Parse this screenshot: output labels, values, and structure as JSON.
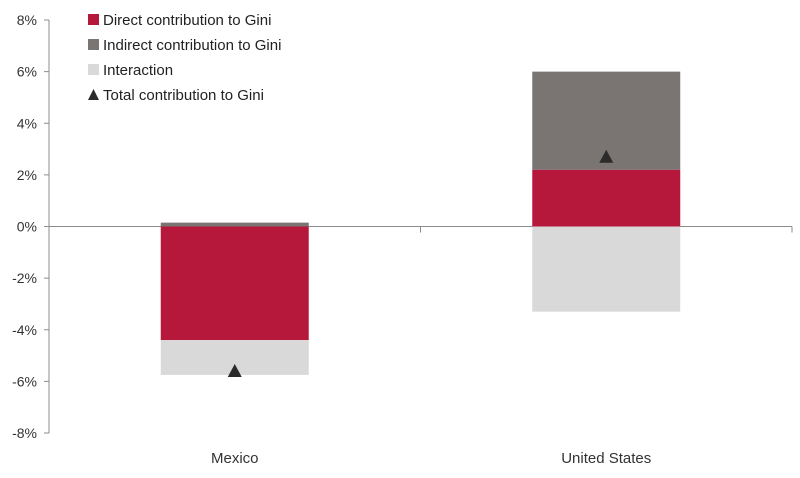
{
  "chart_data": {
    "type": "bar",
    "stacked": true,
    "categories": [
      "Mexico",
      "United States"
    ],
    "series": [
      {
        "name": "Direct contribution to Gini",
        "color": "#b5183a",
        "values": [
          -4.4,
          2.2
        ]
      },
      {
        "name": "Indirect contribution to Gini",
        "color": "#7a7473",
        "values": [
          0.15,
          3.8
        ]
      },
      {
        "name": "Interaction",
        "color": "#d9d9d9",
        "values": [
          -1.35,
          -3.3
        ]
      }
    ],
    "markers": {
      "name": "Total contribution to Gini",
      "shape": "triangle",
      "color": "#2b2b2b",
      "values": [
        -5.6,
        2.7
      ]
    },
    "ylim": [
      -8,
      8
    ],
    "yticks": [
      8,
      6,
      4,
      2,
      0,
      -2,
      -4,
      -6,
      -8
    ],
    "ytick_labels": [
      "8%",
      "6%",
      "4%",
      "2%",
      "0%",
      "-2%",
      "-4%",
      "-6%",
      "-8%"
    ],
    "legend_position": "top-left",
    "grid": false
  }
}
